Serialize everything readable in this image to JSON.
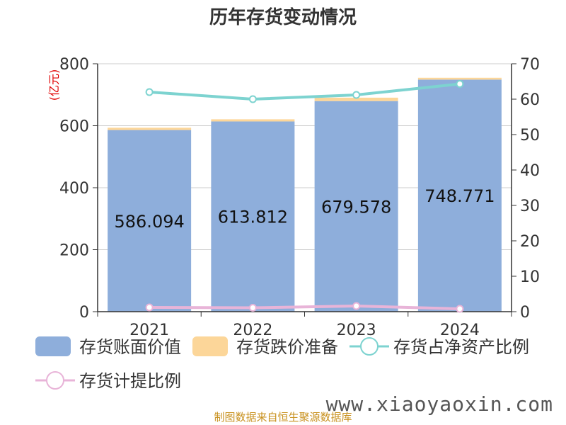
{
  "chart_data": {
    "type": "bar",
    "title": "历年存货变动情况",
    "categories": [
      "2021",
      "2022",
      "2023",
      "2024"
    ],
    "left_axis": {
      "unit": "(亿元)",
      "ylim": [
        0,
        800
      ],
      "ticks": [
        "0",
        "200",
        "400",
        "600",
        "800"
      ]
    },
    "right_axis": {
      "unit": "%",
      "ylim": [
        0,
        70
      ],
      "ticks": [
        "0",
        "10",
        "20",
        "30",
        "40",
        "50",
        "60",
        "70"
      ]
    },
    "series": [
      {
        "name": "存货账面价值",
        "kind": "bar",
        "axis": "left",
        "color": "#8eaedb",
        "values": [
          586.094,
          613.812,
          679.578,
          748.771
        ],
        "labels": [
          "586.094",
          "613.812",
          "679.578",
          "748.771"
        ]
      },
      {
        "name": "存货跌价准备",
        "kind": "bar",
        "axis": "left",
        "stacked": true,
        "color": "#fcd699",
        "values": [
          7.5,
          7.0,
          11.0,
          6.0
        ]
      },
      {
        "name": "存货占净资产比例",
        "kind": "line",
        "axis": "right",
        "color": "#7dd3d0",
        "values": [
          62.0,
          60.0,
          61.2,
          64.3
        ]
      },
      {
        "name": "存货计提比例",
        "kind": "line",
        "axis": "right",
        "color": "#e8b4d8",
        "values": [
          1.2,
          1.1,
          1.6,
          0.8
        ]
      }
    ],
    "grid": true,
    "legend_position": "bottom"
  },
  "footer": {
    "source": "制图数据来自恒生聚源数据库",
    "watermark": "www.xiaoyaoxin.com"
  }
}
